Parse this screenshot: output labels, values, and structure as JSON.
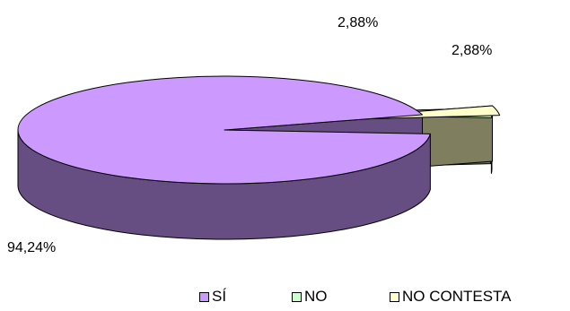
{
  "chart_data": {
    "type": "pie",
    "style": "3d-exploded",
    "categories": [
      "SÍ",
      "NO",
      "NO CONTESTA"
    ],
    "values": [
      94.24,
      2.88,
      2.88
    ],
    "data_labels": [
      "94,24%",
      "2,88%",
      "2,88%"
    ],
    "legend": {
      "placement": "bottom",
      "entries": [
        "SÍ",
        "NO",
        "NO CONTESTA"
      ]
    },
    "colors": {
      "top": [
        "#cc99ff",
        "#ccffcc",
        "#ffffcc"
      ],
      "side": [
        "#664e82",
        "#5f7d5f",
        "#7f7f60"
      ]
    }
  }
}
